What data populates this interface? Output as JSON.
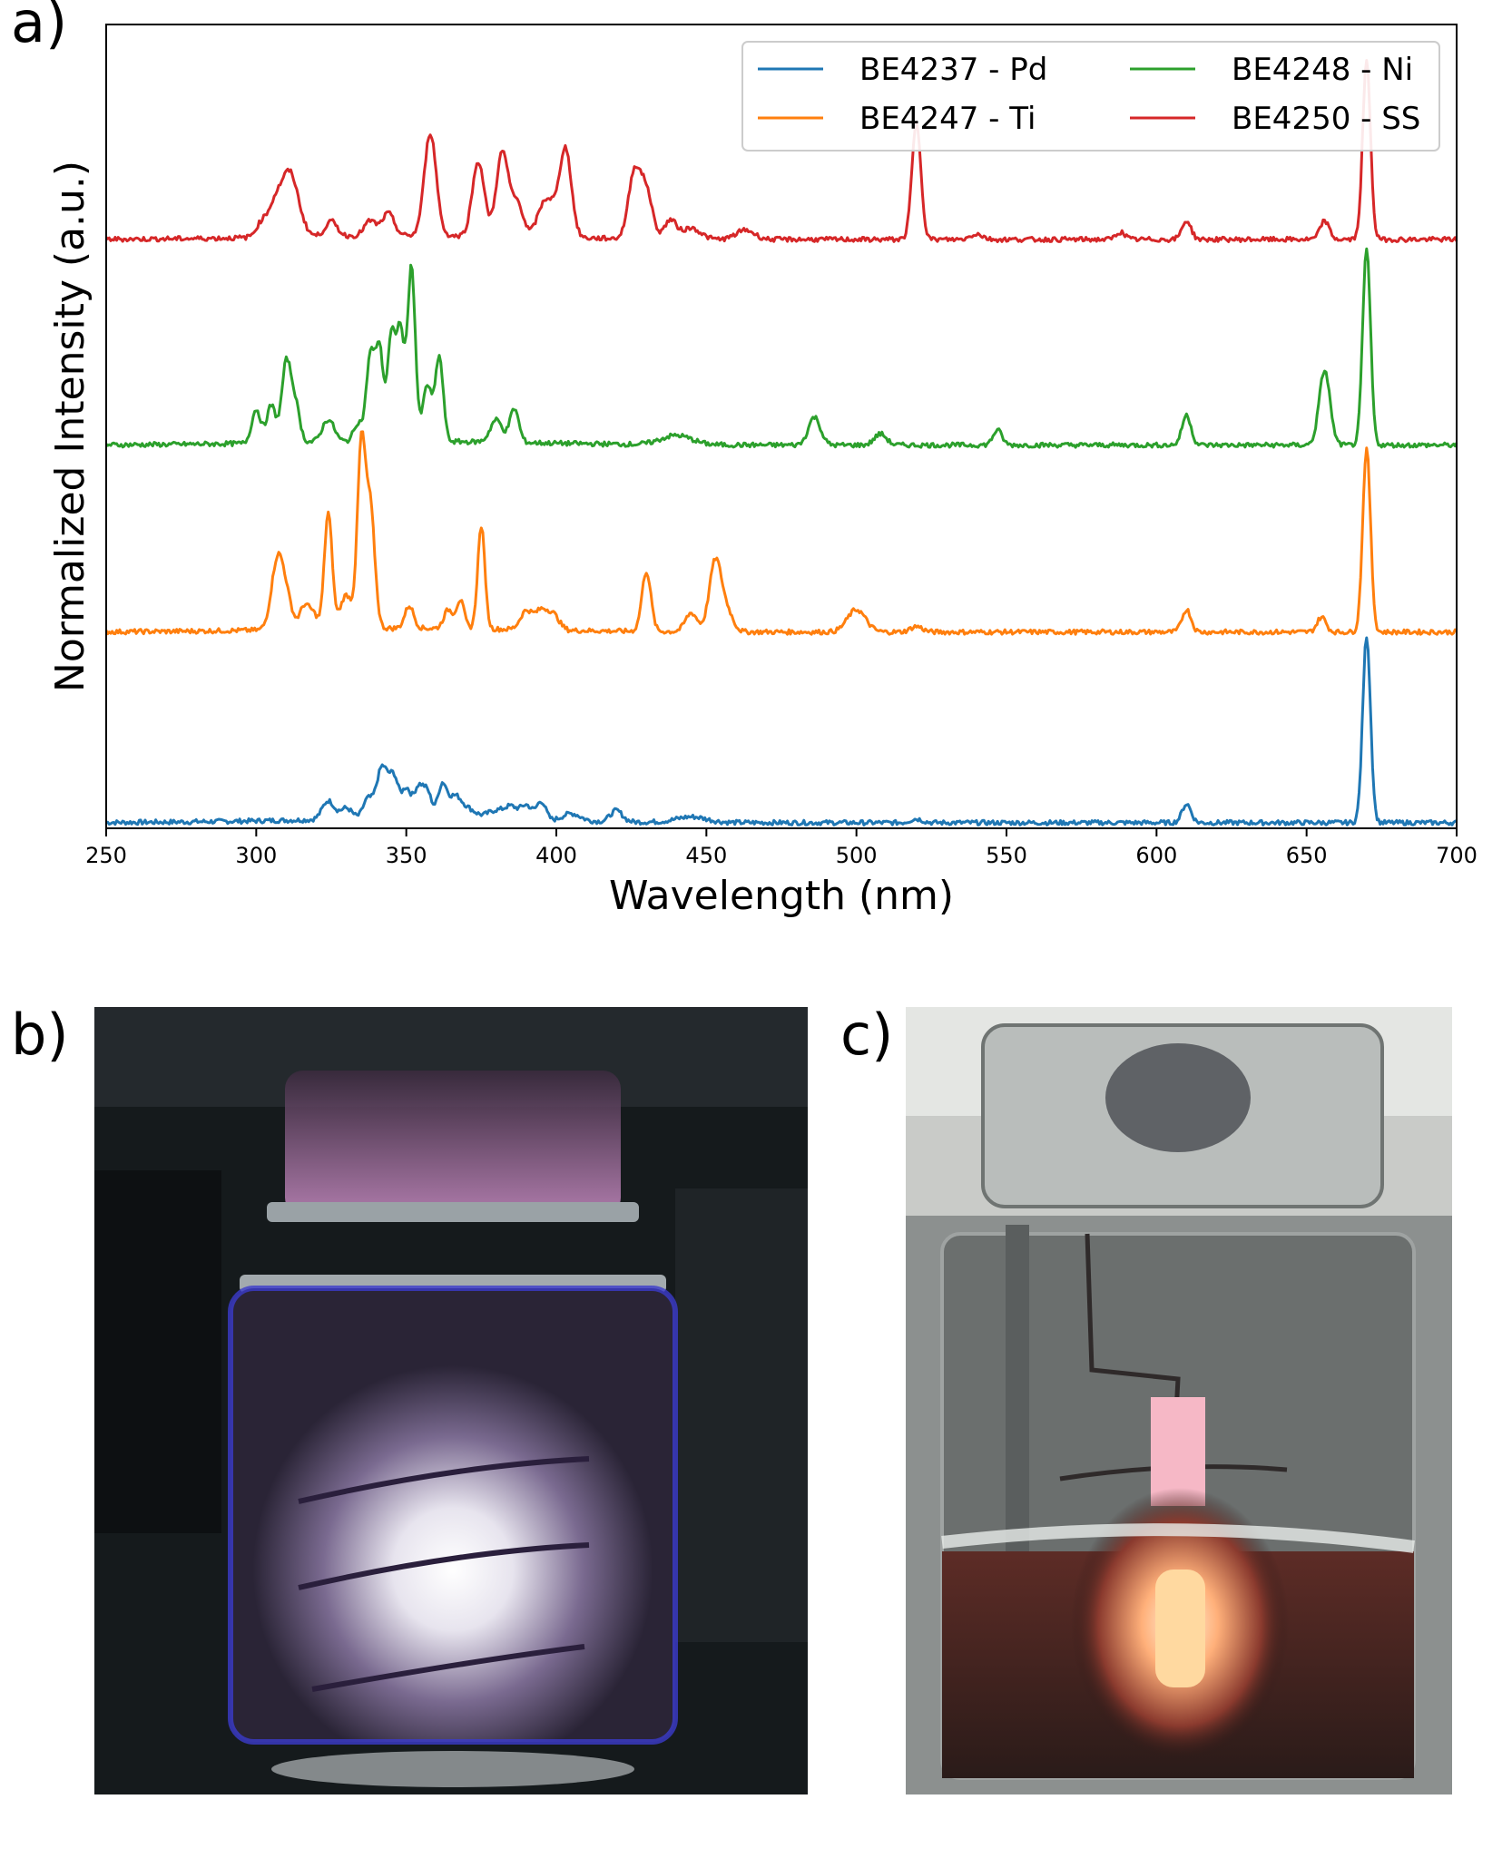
{
  "panels": {
    "a": "a)",
    "b": "b)",
    "c": "c)"
  },
  "chart_data": {
    "type": "line",
    "title": "",
    "xlabel": "Wavelength (nm)",
    "ylabel": "Normalized Intensity (a.u.)",
    "xlim": [
      250,
      700
    ],
    "xticks": [
      250,
      300,
      350,
      400,
      450,
      500,
      550,
      600,
      650,
      700
    ],
    "y_ticks_shown": false,
    "grid": false,
    "legend": {
      "placement": "top-right",
      "columns": 2
    },
    "series": [
      {
        "name": "BE4237 - Pd",
        "color": "#1f77b4",
        "offset": 0,
        "baseline": 0.03,
        "peaks": [
          [
            324,
            0.1,
            2
          ],
          [
            330,
            0.06,
            2
          ],
          [
            337,
            0.1,
            1.5
          ],
          [
            342,
            0.28,
            2
          ],
          [
            346,
            0.2,
            1.5
          ],
          [
            350,
            0.16,
            1.5
          ],
          [
            354,
            0.16,
            1.5
          ],
          [
            357,
            0.14,
            1.5
          ],
          [
            362,
            0.18,
            1.5
          ],
          [
            366,
            0.1,
            2
          ],
          [
            370,
            0.06,
            3
          ],
          [
            380,
            0.05,
            3
          ],
          [
            385,
            0.06,
            2
          ],
          [
            390,
            0.08,
            2
          ],
          [
            395,
            0.1,
            1.5
          ],
          [
            405,
            0.04,
            3
          ],
          [
            420,
            0.06,
            2
          ],
          [
            445,
            0.03,
            5
          ],
          [
            520,
            0.02,
            2
          ],
          [
            610,
            0.1,
            1.5
          ],
          [
            670,
            1.0,
            1.3
          ]
        ]
      },
      {
        "name": "BE4247 - Ti",
        "color": "#ff7f0e",
        "offset": 1.05,
        "baseline": 0.0,
        "peaks": [
          [
            307,
            0.35,
            2
          ],
          [
            310,
            0.15,
            2
          ],
          [
            316,
            0.12,
            1.5
          ],
          [
            319,
            0.08,
            1.5
          ],
          [
            324,
            0.62,
            1.3
          ],
          [
            330,
            0.18,
            2
          ],
          [
            335,
            0.95,
            1.3
          ],
          [
            338,
            0.65,
            1.5
          ],
          [
            351,
            0.12,
            1.5
          ],
          [
            364,
            0.1,
            1.5
          ],
          [
            368,
            0.15,
            1.3
          ],
          [
            375,
            0.55,
            1.2
          ],
          [
            390,
            0.1,
            2
          ],
          [
            395,
            0.1,
            2
          ],
          [
            399,
            0.08,
            2
          ],
          [
            430,
            0.32,
            1.5
          ],
          [
            445,
            0.1,
            2
          ],
          [
            453,
            0.38,
            2
          ],
          [
            457,
            0.1,
            2
          ],
          [
            500,
            0.12,
            3
          ],
          [
            520,
            0.03,
            2
          ],
          [
            610,
            0.12,
            1.5
          ],
          [
            655,
            0.08,
            1.5
          ],
          [
            670,
            0.98,
            1.3
          ]
        ]
      },
      {
        "name": "BE4248 - Ni",
        "color": "#2ca02c",
        "offset": 2.05,
        "baseline": 0.0,
        "peaks": [
          [
            300,
            0.18,
            1.5
          ],
          [
            305,
            0.2,
            1.5
          ],
          [
            310,
            0.42,
            1.5
          ],
          [
            313,
            0.2,
            1.5
          ],
          [
            324,
            0.12,
            2
          ],
          [
            334,
            0.1,
            1.5
          ],
          [
            338,
            0.45,
            1.3
          ],
          [
            341,
            0.5,
            1.3
          ],
          [
            345,
            0.55,
            1.3
          ],
          [
            348,
            0.58,
            1.3
          ],
          [
            351,
            0.3,
            1.2
          ],
          [
            352,
            0.7,
            1.2
          ],
          [
            357,
            0.3,
            1.5
          ],
          [
            361,
            0.45,
            1.3
          ],
          [
            380,
            0.12,
            2
          ],
          [
            386,
            0.18,
            1.5
          ],
          [
            440,
            0.05,
            5
          ],
          [
            486,
            0.15,
            2
          ],
          [
            508,
            0.06,
            2
          ],
          [
            547,
            0.08,
            1.5
          ],
          [
            610,
            0.16,
            1.5
          ],
          [
            656,
            0.4,
            1.8
          ],
          [
            670,
            1.05,
            1.3
          ]
        ]
      },
      {
        "name": "BE4250 - SS",
        "color": "#d62728",
        "offset": 3.15,
        "baseline": 0.0,
        "peaks": [
          [
            302,
            0.08,
            2
          ],
          [
            306,
            0.12,
            2
          ],
          [
            311,
            0.35,
            3
          ],
          [
            325,
            0.08,
            2
          ],
          [
            338,
            0.08,
            2
          ],
          [
            344,
            0.12,
            2
          ],
          [
            358,
            0.55,
            2
          ],
          [
            374,
            0.4,
            2
          ],
          [
            382,
            0.45,
            2
          ],
          [
            387,
            0.18,
            2
          ],
          [
            395,
            0.12,
            2
          ],
          [
            398,
            0.15,
            2
          ],
          [
            403,
            0.48,
            2
          ],
          [
            426,
            0.35,
            2
          ],
          [
            430,
            0.25,
            2
          ],
          [
            438,
            0.1,
            2
          ],
          [
            445,
            0.06,
            3
          ],
          [
            463,
            0.05,
            3
          ],
          [
            520,
            0.62,
            1.5
          ],
          [
            540,
            0.03,
            2
          ],
          [
            588,
            0.04,
            1.5
          ],
          [
            610,
            0.1,
            1.5
          ],
          [
            656,
            0.1,
            1.5
          ],
          [
            670,
            0.95,
            1.3
          ]
        ]
      }
    ]
  }
}
